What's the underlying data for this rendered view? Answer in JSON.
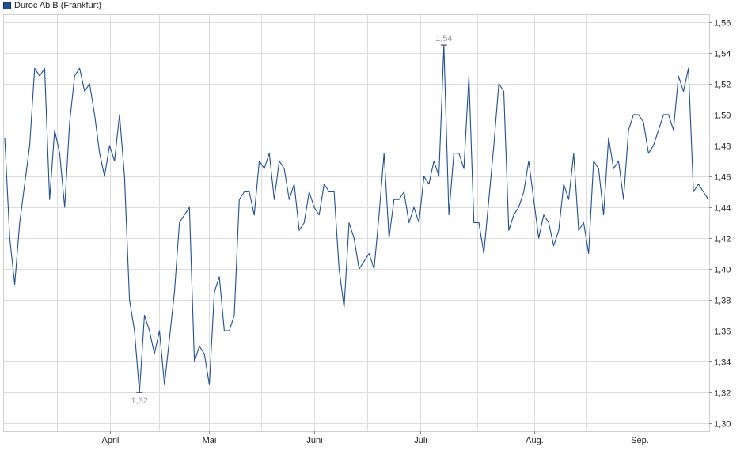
{
  "chart_data": {
    "type": "line",
    "series_name": "Duroc Ab B (Frankfurt)",
    "color": "#1f4f94",
    "x_labels": [
      "April",
      "Mai",
      "Juni",
      "Juli",
      "Aug.",
      "Sep."
    ],
    "y_ticks": [
      "1,30",
      "1,32",
      "1,34",
      "1,36",
      "1,38",
      "1,40",
      "1,42",
      "1,44",
      "1,46",
      "1,48",
      "1,50",
      "1,52",
      "1,54",
      "1,56"
    ],
    "ylim": [
      1.295,
      1.565
    ],
    "grid": true,
    "annotations": {
      "max": "1,54",
      "min": "1,32"
    },
    "values": [
      1.485,
      1.42,
      1.39,
      1.43,
      1.455,
      1.48,
      1.53,
      1.525,
      1.53,
      1.445,
      1.49,
      1.475,
      1.44,
      1.495,
      1.525,
      1.53,
      1.515,
      1.52,
      1.5,
      1.475,
      1.46,
      1.48,
      1.47,
      1.5,
      1.46,
      1.38,
      1.36,
      1.32,
      1.37,
      1.36,
      1.345,
      1.36,
      1.325,
      1.355,
      1.385,
      1.43,
      1.435,
      1.44,
      1.34,
      1.35,
      1.345,
      1.325,
      1.385,
      1.395,
      1.36,
      1.36,
      1.37,
      1.445,
      1.45,
      1.45,
      1.435,
      1.47,
      1.465,
      1.475,
      1.445,
      1.47,
      1.465,
      1.445,
      1.455,
      1.425,
      1.43,
      1.45,
      1.44,
      1.435,
      1.455,
      1.45,
      1.45,
      1.4,
      1.375,
      1.43,
      1.42,
      1.4,
      1.405,
      1.41,
      1.4,
      1.435,
      1.475,
      1.42,
      1.445,
      1.445,
      1.45,
      1.43,
      1.44,
      1.43,
      1.46,
      1.455,
      1.47,
      1.46,
      1.545,
      1.435,
      1.475,
      1.475,
      1.465,
      1.525,
      1.43,
      1.43,
      1.41,
      1.445,
      1.48,
      1.52,
      1.515,
      1.425,
      1.435,
      1.44,
      1.45,
      1.47,
      1.445,
      1.42,
      1.435,
      1.43,
      1.415,
      1.425,
      1.455,
      1.445,
      1.475,
      1.425,
      1.43,
      1.41,
      1.47,
      1.465,
      1.435,
      1.485,
      1.465,
      1.47,
      1.445,
      1.49,
      1.5,
      1.5,
      1.495,
      1.475,
      1.48,
      1.49,
      1.5,
      1.5,
      1.49,
      1.525,
      1.515,
      1.53,
      1.45,
      1.455,
      1.45,
      1.445
    ]
  }
}
